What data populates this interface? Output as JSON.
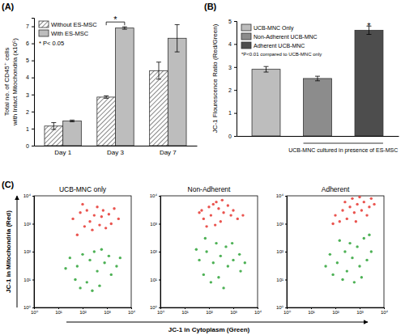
{
  "chart_data": [
    {
      "type": "bar",
      "panel": "(A)",
      "y_label": [
        "Total no. of CD45⁺ cells",
        "with Intact Mitochondria (x10⁵)"
      ],
      "categories": [
        "Day 1",
        "Day 3",
        "Day 7"
      ],
      "series": [
        {
          "name": "Without ES-MSC",
          "color": "#444444",
          "values": [
            1.15,
            2.85,
            4.4
          ],
          "errors": [
            0.2,
            0.07,
            0.5
          ]
        },
        {
          "name": "With ES-MSC",
          "color": "#bdbdbd",
          "values": [
            1.45,
            6.9,
            6.3
          ],
          "errors": [
            0.05,
            0.07,
            0.8
          ]
        }
      ],
      "ylim": [
        0,
        7.5
      ],
      "yticks": [
        0,
        1,
        2,
        3,
        4,
        5,
        6,
        7
      ],
      "legend": "top-left",
      "annotations": [
        {
          "text": "* P< 0.05"
        },
        {
          "text": "*",
          "category": "Day 3"
        }
      ]
    },
    {
      "type": "bar",
      "panel": "(B)",
      "y_label": "JC-1 Flourescence Ratio (Red/Green)",
      "x_label": "UCB-MNC cultured in presence of ES-MSC",
      "categories": [
        "UCB-MNC Only",
        "Non-Adherent UCB-MNC",
        "Adherent UCB-MNC"
      ],
      "values": [
        2.9,
        2.5,
        4.6
      ],
      "errors": [
        0.12,
        0.1,
        0.18
      ],
      "colors": [
        "#bdbdbd",
        "#8c8c8c",
        "#4d4d4d"
      ],
      "ylim": [
        0,
        5
      ],
      "yticks": [
        0,
        1,
        2,
        3,
        4,
        5
      ],
      "legend": "top-left",
      "tick_labels": "y",
      "annotations": [
        {
          "text": "*P<0.01 compared to UCB-MNC only"
        },
        {
          "text": "*",
          "category": "Adherent UCB-MNC"
        }
      ]
    },
    {
      "type": "scatter",
      "panel": "(C)",
      "title": "UCB-MNC only",
      "y_label": "JC-1 in Mitochondria (Red)",
      "log": true,
      "xlim": [
        1,
        10000
      ],
      "ylim": [
        1,
        10000
      ],
      "xticks": [
        {
          "value": 1,
          "label": "10⁰"
        },
        {
          "value": 10,
          "label": "10¹"
        },
        {
          "value": 100,
          "label": "10²"
        },
        {
          "value": 1000,
          "label": "10³"
        },
        {
          "value": 10000,
          "label": "10⁴"
        }
      ],
      "yticks": [
        {
          "value": 1,
          "label": "10⁰"
        },
        {
          "value": 10,
          "label": "10¹"
        },
        {
          "value": 100,
          "label": "10²"
        },
        {
          "value": 1000,
          "label": "10³"
        },
        {
          "value": 10000,
          "label": "10⁴"
        }
      ],
      "series": [
        {
          "color": "#e8413c",
          "x": [
            40,
            80,
            150,
            300,
            600,
            1200,
            2000,
            120,
            250,
            500,
            900,
            60,
            200,
            1500,
            3000,
            400,
            100,
            700
          ],
          "values": [
            1500,
            2500,
            3000,
            2000,
            1800,
            2200,
            3500,
            800,
            600,
            900,
            700,
            400,
            1200,
            1000,
            1500,
            4000,
            5000,
            3000
          ]
        },
        {
          "color": "#3aa843",
          "x": [
            30,
            60,
            100,
            200,
            400,
            800,
            1500,
            50,
            150,
            300,
            600,
            1200,
            2500,
            80,
            250,
            3500,
            20,
            500
          ],
          "values": [
            60,
            30,
            80,
            50,
            20,
            40,
            15,
            10,
            8,
            100,
            120,
            70,
            30,
            5,
            4,
            60,
            25,
            6
          ]
        }
      ]
    },
    {
      "type": "scatter",
      "title": "Non-Adherent",
      "x_label": "JC-1 in Cytoplasm (Green)",
      "log": true,
      "xlim": [
        1,
        10000
      ],
      "ylim": [
        1,
        10000
      ],
      "xticks": [
        {
          "value": 1,
          "label": "10⁰"
        },
        {
          "value": 10,
          "label": "10¹"
        },
        {
          "value": 100,
          "label": "10²"
        },
        {
          "value": 1000,
          "label": "10³"
        },
        {
          "value": 10000,
          "label": "10⁴"
        }
      ],
      "yticks": [
        {
          "value": 1,
          "label": "10⁰"
        },
        {
          "value": 10,
          "label": "10¹"
        },
        {
          "value": 100,
          "label": "10²"
        },
        {
          "value": 1000,
          "label": "10³"
        },
        {
          "value": 10000,
          "label": "10⁴"
        }
      ],
      "series": [
        {
          "color": "#e8413c",
          "x": [
            50,
            100,
            150,
            250,
            400,
            800,
            60,
            120,
            200,
            600,
            1000,
            80,
            300,
            1500,
            40,
            180,
            2500,
            350
          ],
          "values": [
            3000,
            4000,
            5000,
            3500,
            2500,
            2000,
            1500,
            2000,
            6000,
            4500,
            3000,
            800,
            1200,
            1500,
            2500,
            900,
            2000,
            7000
          ]
        },
        {
          "color": "#3aa843",
          "x": [
            40,
            80,
            150,
            300,
            600,
            1000,
            2000,
            60,
            120,
            250,
            500,
            900,
            1800,
            30,
            200,
            3000,
            70,
            400
          ],
          "values": [
            50,
            100,
            40,
            70,
            30,
            50,
            20,
            15,
            8,
            12,
            150,
            200,
            80,
            120,
            200,
            40,
            300,
            5
          ]
        }
      ]
    },
    {
      "type": "scatter",
      "title": "Adherent",
      "log": true,
      "xlim": [
        1,
        10000
      ],
      "ylim": [
        1,
        10000
      ],
      "xticks": [
        {
          "value": 1,
          "label": "10⁰"
        },
        {
          "value": 10,
          "label": "10¹"
        },
        {
          "value": 100,
          "label": "10²"
        },
        {
          "value": 1000,
          "label": "10³"
        },
        {
          "value": 10000,
          "label": "10⁴"
        }
      ],
      "yticks": [
        {
          "value": 1,
          "label": "10⁰"
        },
        {
          "value": 10,
          "label": "10¹"
        },
        {
          "value": 100,
          "label": "10²"
        },
        {
          "value": 1000,
          "label": "10³"
        },
        {
          "value": 10000,
          "label": "10⁴"
        }
      ],
      "series": [
        {
          "color": "#e8413c",
          "x": [
            100,
            200,
            400,
            800,
            1500,
            3000,
            150,
            300,
            600,
            1200,
            2500,
            250,
            500,
            1000,
            80,
            2000,
            4000,
            700
          ],
          "values": [
            2000,
            3000,
            4000,
            5000,
            6000,
            8000,
            1200,
            1500,
            2500,
            3000,
            4000,
            6000,
            8000,
            9000,
            1000,
            2000,
            5000,
            1200
          ]
        },
        {
          "color": "#3aa843",
          "x": [
            60,
            120,
            250,
            500,
            1000,
            2000,
            80,
            200,
            400,
            800,
            1500,
            3000,
            40,
            150,
            300,
            600,
            2500,
            1200
          ],
          "values": [
            80,
            40,
            100,
            60,
            30,
            50,
            15,
            10,
            200,
            150,
            300,
            100,
            30,
            250,
            20,
            8,
            400,
            12
          ]
        }
      ]
    }
  ]
}
